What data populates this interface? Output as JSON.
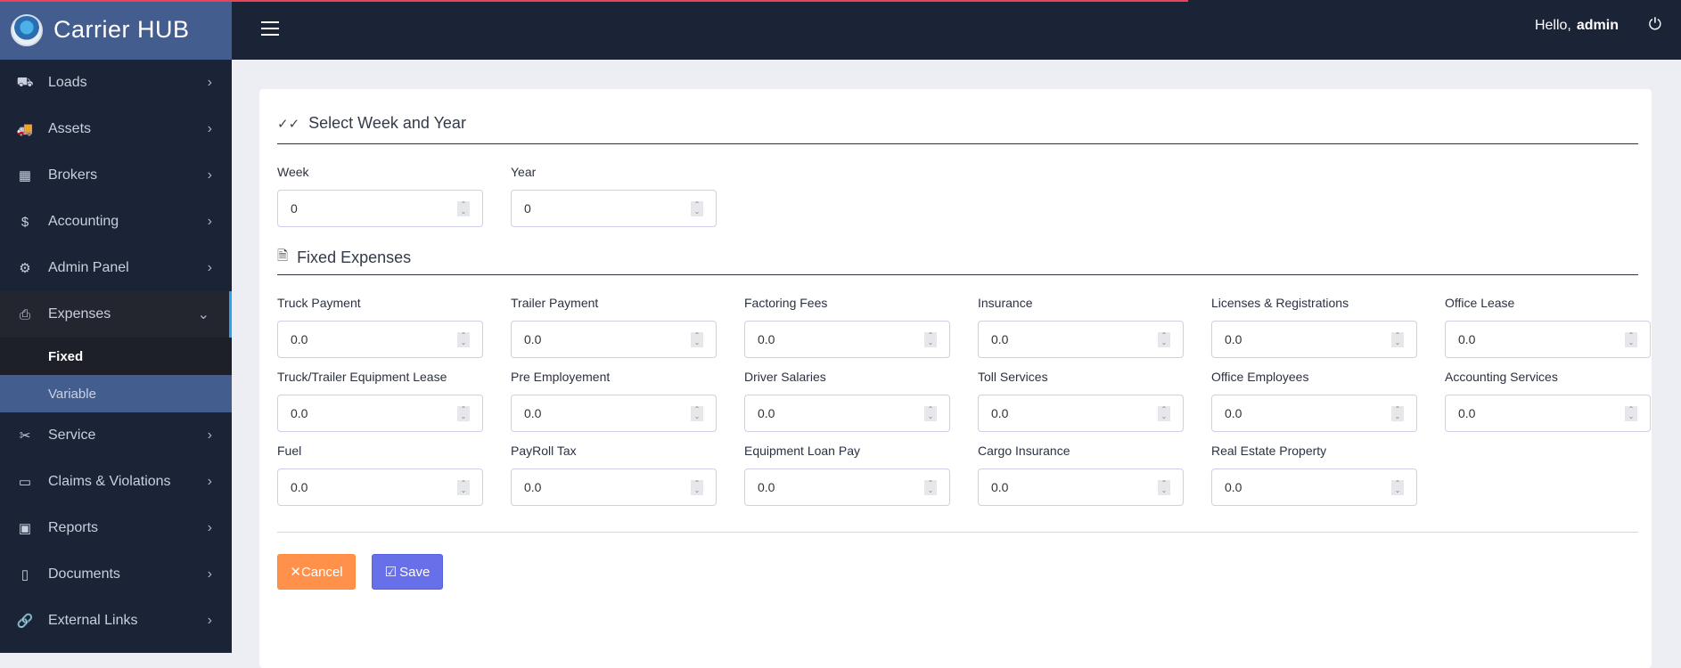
{
  "app": {
    "title": "Carrier HUB"
  },
  "header": {
    "greeting": "Hello,",
    "user": "admin"
  },
  "sidebar": {
    "items": [
      {
        "label": "Loads",
        "icon": "dolly-icon"
      },
      {
        "label": "Assets",
        "icon": "truck-icon"
      },
      {
        "label": "Brokers",
        "icon": "building-icon"
      },
      {
        "label": "Accounting",
        "icon": "dollar-icon"
      },
      {
        "label": "Admin Panel",
        "icon": "gear-icon"
      },
      {
        "label": "Expenses",
        "icon": "printer-icon",
        "expanded": true,
        "sub": [
          {
            "label": "Fixed",
            "active": true
          },
          {
            "label": "Variable"
          }
        ]
      },
      {
        "label": "Service",
        "icon": "tools-icon"
      },
      {
        "label": "Claims & Violations",
        "icon": "ticket-icon"
      },
      {
        "label": "Reports",
        "icon": "report-icon"
      },
      {
        "label": "Documents",
        "icon": "document-icon"
      },
      {
        "label": "External Links",
        "icon": "link-icon"
      }
    ]
  },
  "week_section": {
    "title": "Select Week and Year",
    "fields": [
      {
        "label": "Week",
        "value": "0"
      },
      {
        "label": "Year",
        "value": "0"
      }
    ]
  },
  "expenses_section": {
    "title": "Fixed Expenses",
    "fields": [
      {
        "label": "Truck Payment",
        "value": "0.0"
      },
      {
        "label": "Trailer Payment",
        "value": "0.0"
      },
      {
        "label": "Factoring Fees",
        "value": "0.0"
      },
      {
        "label": "Insurance",
        "value": "0.0"
      },
      {
        "label": "Licenses & Registrations",
        "value": "0.0"
      },
      {
        "label": "Office Lease",
        "value": "0.0"
      },
      {
        "label": "Truck/Trailer Equipment Lease",
        "value": "0.0"
      },
      {
        "label": "Pre Employement",
        "value": "0.0"
      },
      {
        "label": "Driver Salaries",
        "value": "0.0"
      },
      {
        "label": "Toll Services",
        "value": "0.0"
      },
      {
        "label": "Office Employees",
        "value": "0.0"
      },
      {
        "label": "Accounting Services",
        "value": "0.0"
      },
      {
        "label": "Fuel",
        "value": "0.0"
      },
      {
        "label": "PayRoll Tax",
        "value": "0.0"
      },
      {
        "label": "Equipment Loan Pay",
        "value": "0.0"
      },
      {
        "label": "Cargo Insurance",
        "value": "0.0"
      },
      {
        "label": "Real Estate Property",
        "value": "0.0"
      }
    ]
  },
  "actions": {
    "cancel": "Cancel",
    "save": "Save"
  },
  "colors": {
    "sidebar": "#1b2337",
    "brand": "#435d8f",
    "cancel": "#ff914a",
    "save": "#6870e9",
    "accent": "#27a3ee"
  }
}
